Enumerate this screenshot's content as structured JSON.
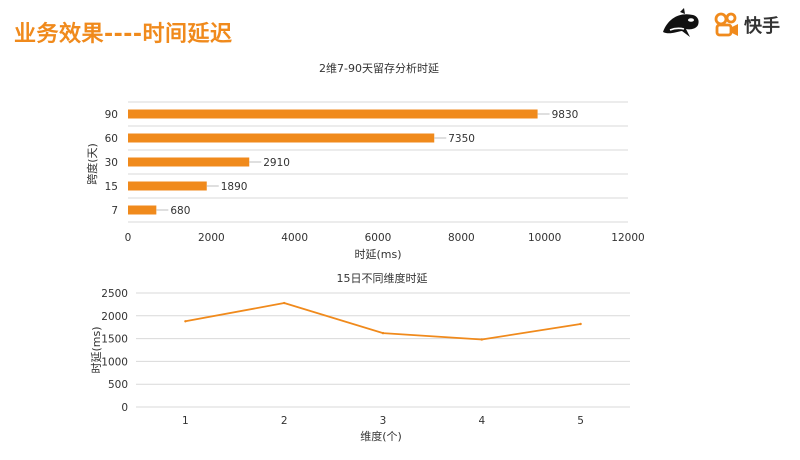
{
  "header": {
    "title": "业务效果----时间延迟",
    "brand_name": "快手",
    "accent_color": "#f08a1c",
    "logo_icons": [
      "orca-logo-icon",
      "kuaishou-logo-icon"
    ]
  },
  "chart_data": [
    {
      "type": "bar",
      "orientation": "horizontal",
      "title": "2维7-90天留存分析时延",
      "xlabel": "时延(ms)",
      "ylabel": "跨度(天)",
      "categories": [
        "7",
        "15",
        "30",
        "60",
        "90"
      ],
      "values": [
        680,
        1890,
        2910,
        7350,
        9830
      ],
      "xlim": [
        0,
        12000
      ],
      "xticks": [
        0,
        2000,
        4000,
        6000,
        8000,
        10000,
        12000
      ],
      "grid": true,
      "data_labels": true,
      "color": "#f08a1c"
    },
    {
      "type": "line",
      "title": "15日不同维度时延",
      "xlabel": "维度(个)",
      "ylabel": "时延(ms)",
      "x": [
        1,
        2,
        3,
        4,
        5
      ],
      "values": [
        1880,
        2280,
        1620,
        1480,
        1820
      ],
      "ylim": [
        0,
        2500
      ],
      "yticks": [
        0,
        500,
        1000,
        1500,
        2000,
        2500
      ],
      "grid": true,
      "color": "#f08a1c"
    }
  ]
}
